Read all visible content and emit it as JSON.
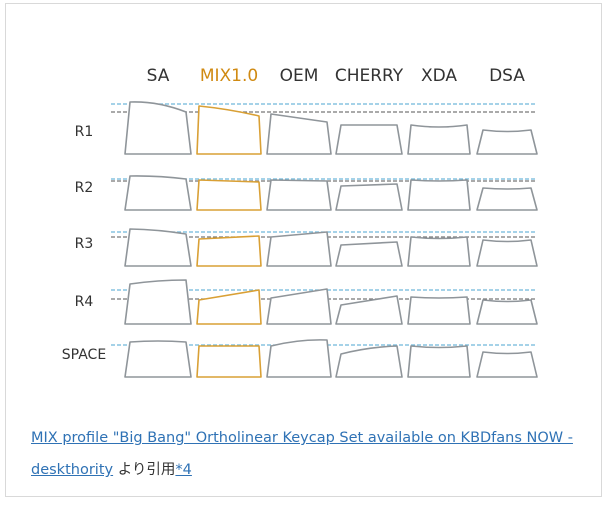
{
  "diagram": {
    "profiles": [
      {
        "name": "SA",
        "color": "#333333"
      },
      {
        "name": "MIX1.0",
        "color": "#d08a12"
      },
      {
        "name": "OEM",
        "color": "#333333"
      },
      {
        "name": "CHERRY",
        "color": "#333333"
      },
      {
        "name": "XDA",
        "color": "#333333"
      },
      {
        "name": "DSA",
        "color": "#333333"
      }
    ],
    "rows": [
      "R1",
      "R2",
      "R3",
      "R4",
      "SPACE"
    ],
    "colors": {
      "keycap": "#8f959a",
      "highlight": "#d9a035",
      "guide_blue": "#6fb8d9",
      "guide_gray": "#777777"
    }
  },
  "caption": {
    "link_text": "MIX profile \"Big Bang\" Ortholinear Keycap Set available on KBDfans NOW - deskthority",
    "suffix_text": "より引用",
    "footnote": "*4"
  }
}
